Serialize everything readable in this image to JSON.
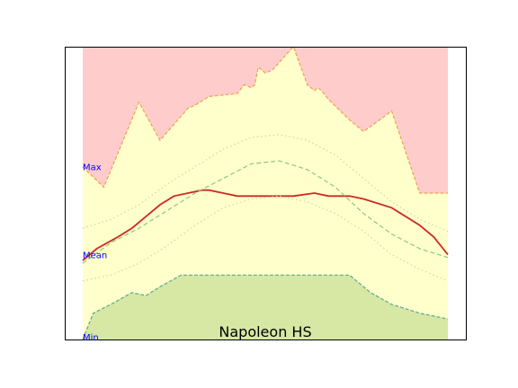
{
  "chart_data": {
    "type": "area",
    "title": "Napoleon HS",
    "xlabel": "",
    "ylabel": "",
    "xlim": [
      0,
      52
    ],
    "ylim": [
      0,
      100
    ],
    "grid": false,
    "legend": "none",
    "x": [
      0,
      3,
      8,
      11,
      15,
      16,
      18,
      22,
      23,
      24,
      24.5,
      25,
      26,
      27,
      30,
      32,
      33,
      33.5,
      34,
      35,
      38,
      40,
      44,
      48,
      49,
      52
    ],
    "area_max": {
      "upper": 100,
      "values": [
        59,
        52,
        81,
        68,
        79,
        80,
        83,
        84,
        87,
        86,
        87,
        93,
        91,
        92,
        100,
        87,
        85,
        86,
        85,
        82,
        75,
        71,
        78,
        50,
        50,
        50
      ],
      "color": "#ffcccc",
      "edge_color": "#f0a050"
    },
    "area_mid": {
      "lower_ref": "area_min",
      "color": "#ffffcc"
    },
    "area_min": {
      "x": [
        0,
        1.5,
        4,
        7,
        9,
        11,
        14,
        17,
        20,
        25,
        29,
        34,
        38,
        41,
        44,
        48,
        50,
        52
      ],
      "values": [
        0,
        9,
        12,
        16,
        15,
        18,
        22,
        22,
        22,
        22,
        22,
        22,
        22,
        16,
        12,
        9,
        8,
        7
      ],
      "color": "#d6e8a4",
      "edge_color": "#5ca890"
    },
    "series": [
      {
        "name": "",
        "style": "solid",
        "color": "#cc2a22",
        "x": [
          0,
          2,
          5,
          7,
          9,
          11,
          13,
          15,
          17,
          18,
          20,
          22,
          25,
          28,
          30,
          33,
          35,
          38,
          40,
          44,
          48,
          50,
          52
        ],
        "values": [
          27,
          31,
          35,
          38,
          42,
          46,
          49,
          50,
          51,
          51,
          50,
          49,
          49,
          49,
          49,
          50,
          49,
          49,
          48,
          45,
          39,
          35,
          29
        ]
      },
      {
        "name": "",
        "style": "dashed",
        "color": "#8cc878",
        "x": [
          0,
          4,
          8,
          12,
          16,
          20,
          24,
          28,
          32,
          36,
          40,
          44,
          48,
          52
        ],
        "values": [
          26,
          33,
          38,
          44,
          50,
          55,
          60,
          61,
          58,
          52,
          43,
          36,
          31,
          28
        ]
      },
      {
        "name": "",
        "style": "dotted",
        "color": "#c4dca0",
        "x": [
          0,
          4,
          8,
          12,
          16,
          20,
          24,
          28,
          32,
          36,
          40,
          44,
          48,
          52
        ],
        "values": [
          38,
          41,
          46,
          53,
          59,
          65,
          69,
          70,
          68,
          63,
          55,
          47,
          41,
          37
        ]
      },
      {
        "name": "",
        "style": "dotted",
        "color": "#c4dca0",
        "x": [
          0,
          4,
          8,
          12,
          16,
          20,
          24,
          28,
          32,
          36,
          40,
          44,
          48,
          52
        ],
        "values": [
          20,
          22,
          26,
          32,
          39,
          45,
          48,
          49,
          47,
          43,
          37,
          29,
          24,
          20
        ]
      }
    ],
    "annotations": [
      {
        "text": "Max",
        "x": 0,
        "y": 59
      },
      {
        "text": "Mean",
        "x": 0,
        "y": 29
      },
      {
        "text": "Min",
        "x": 0,
        "y": 0
      }
    ]
  }
}
